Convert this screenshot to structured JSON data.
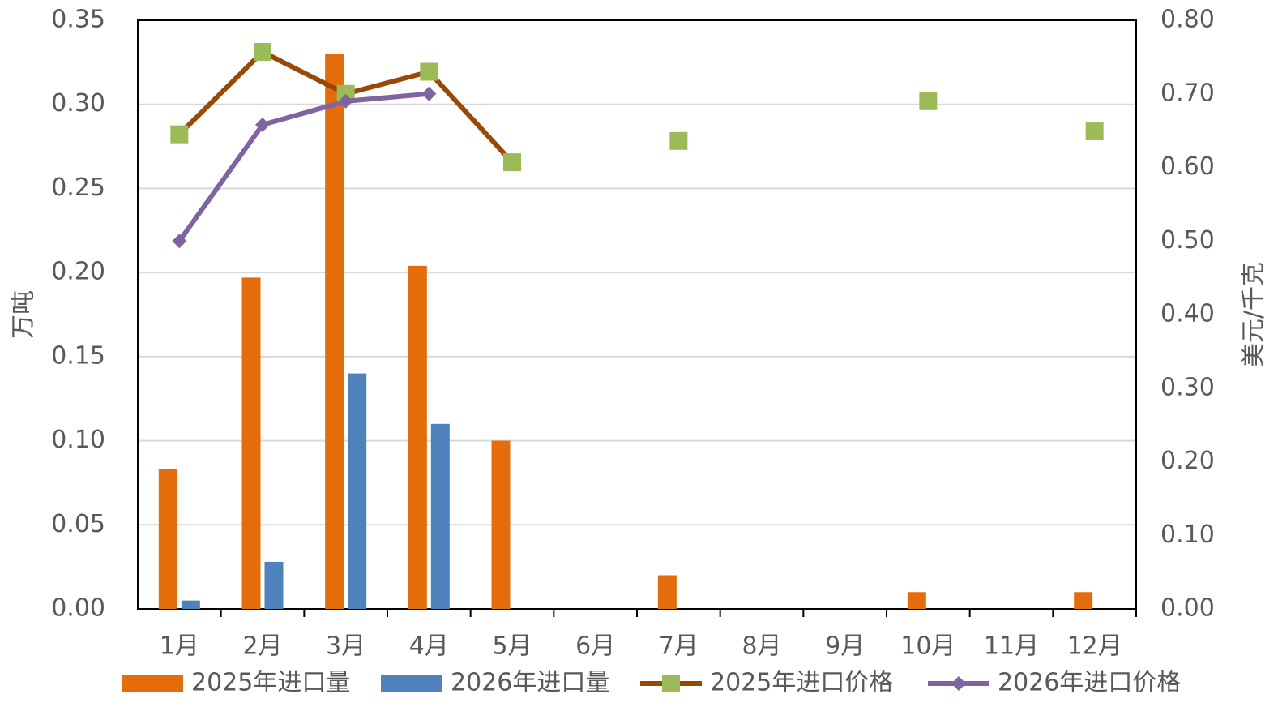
{
  "chart_data": {
    "type": "bar",
    "y_label": "万吨",
    "y2_label": "美元/千克",
    "categories": [
      "1月",
      "2月",
      "3月",
      "4月",
      "5月",
      "6月",
      "7月",
      "8月",
      "9月",
      "10月",
      "11月",
      "12月"
    ],
    "ylim": [
      0,
      0.35
    ],
    "yticks": [
      {
        "value": 0,
        "label": "0.00"
      },
      {
        "value": 0.05,
        "label": "0.05"
      },
      {
        "value": 0.1,
        "label": "0.10"
      },
      {
        "value": 0.15,
        "label": "0.15"
      },
      {
        "value": 0.2,
        "label": "0.20"
      },
      {
        "value": 0.25,
        "label": "0.25"
      },
      {
        "value": 0.3,
        "label": "0.30"
      },
      {
        "value": 0.35,
        "label": "0.35"
      }
    ],
    "y2lim": [
      0,
      0.8
    ],
    "y2ticks": [
      {
        "value": 0,
        "label": "0.00"
      },
      {
        "value": 0.1,
        "label": "0.10"
      },
      {
        "value": 0.2,
        "label": "0.20"
      },
      {
        "value": 0.3,
        "label": "0.30"
      },
      {
        "value": 0.4,
        "label": "0.40"
      },
      {
        "value": 0.5,
        "label": "0.50"
      },
      {
        "value": 0.6,
        "label": "0.60"
      },
      {
        "value": 0.7,
        "label": "0.70"
      },
      {
        "value": 0.8,
        "label": "0.80"
      }
    ],
    "grid": true,
    "legend": "bottom",
    "series": [
      {
        "name": "2025年进口量",
        "type": "bar",
        "color": "#e46c0a",
        "values": [
          0.083,
          0.197,
          0.33,
          0.204,
          0.1,
          null,
          0.02,
          null,
          null,
          0.01,
          null,
          0.01
        ]
      },
      {
        "name": "2026年进口量",
        "type": "bar",
        "color": "#4f81bd",
        "values": [
          0.005,
          0.028,
          0.14,
          0.11,
          null,
          null,
          null,
          null,
          null,
          null,
          null,
          null
        ]
      },
      {
        "name": "2025年进口价格",
        "type": "line",
        "axis": "y2",
        "color": "#984807",
        "marker": "square",
        "marker_color": "#9bbb59",
        "values": [
          0.645,
          0.757,
          0.7,
          0.73,
          0.607,
          null,
          0.636,
          null,
          null,
          0.69,
          null,
          0.649
        ]
      },
      {
        "name": "2026年进口价格",
        "type": "line",
        "axis": "y2",
        "color": "#8064a2",
        "marker": "diamond",
        "marker_color": "#8064a2",
        "values": [
          0.5,
          0.658,
          0.69,
          0.7,
          null,
          null,
          null,
          null,
          null,
          null,
          null,
          null
        ]
      }
    ]
  }
}
